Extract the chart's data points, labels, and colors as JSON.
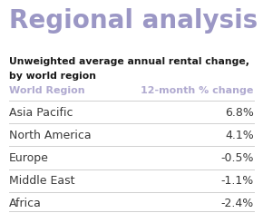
{
  "title": "Regional analysis",
  "subtitle_line1": "Unweighted average annual rental change,",
  "subtitle_line2": "by world region",
  "col_header_left": "World Region",
  "col_header_right": "12-month % change",
  "rows": [
    {
      "region": "Asia Pacific",
      "value": "6.8%"
    },
    {
      "region": "North America",
      "value": "4.1%"
    },
    {
      "region": "Europe",
      "value": "-0.5%"
    },
    {
      "region": "Middle East",
      "value": "-1.1%"
    },
    {
      "region": "Africa",
      "value": "-2.4%"
    }
  ],
  "bg_color": "#ffffff",
  "title_color": "#9b97c5",
  "subtitle_color": "#1a1a1a",
  "header_color": "#b0aad0",
  "row_text_color": "#3a3a3a",
  "divider_color": "#d0d0d0",
  "title_fontsize": 20,
  "subtitle_fontsize": 7.8,
  "header_fontsize": 8.0,
  "row_fontsize": 9.0
}
